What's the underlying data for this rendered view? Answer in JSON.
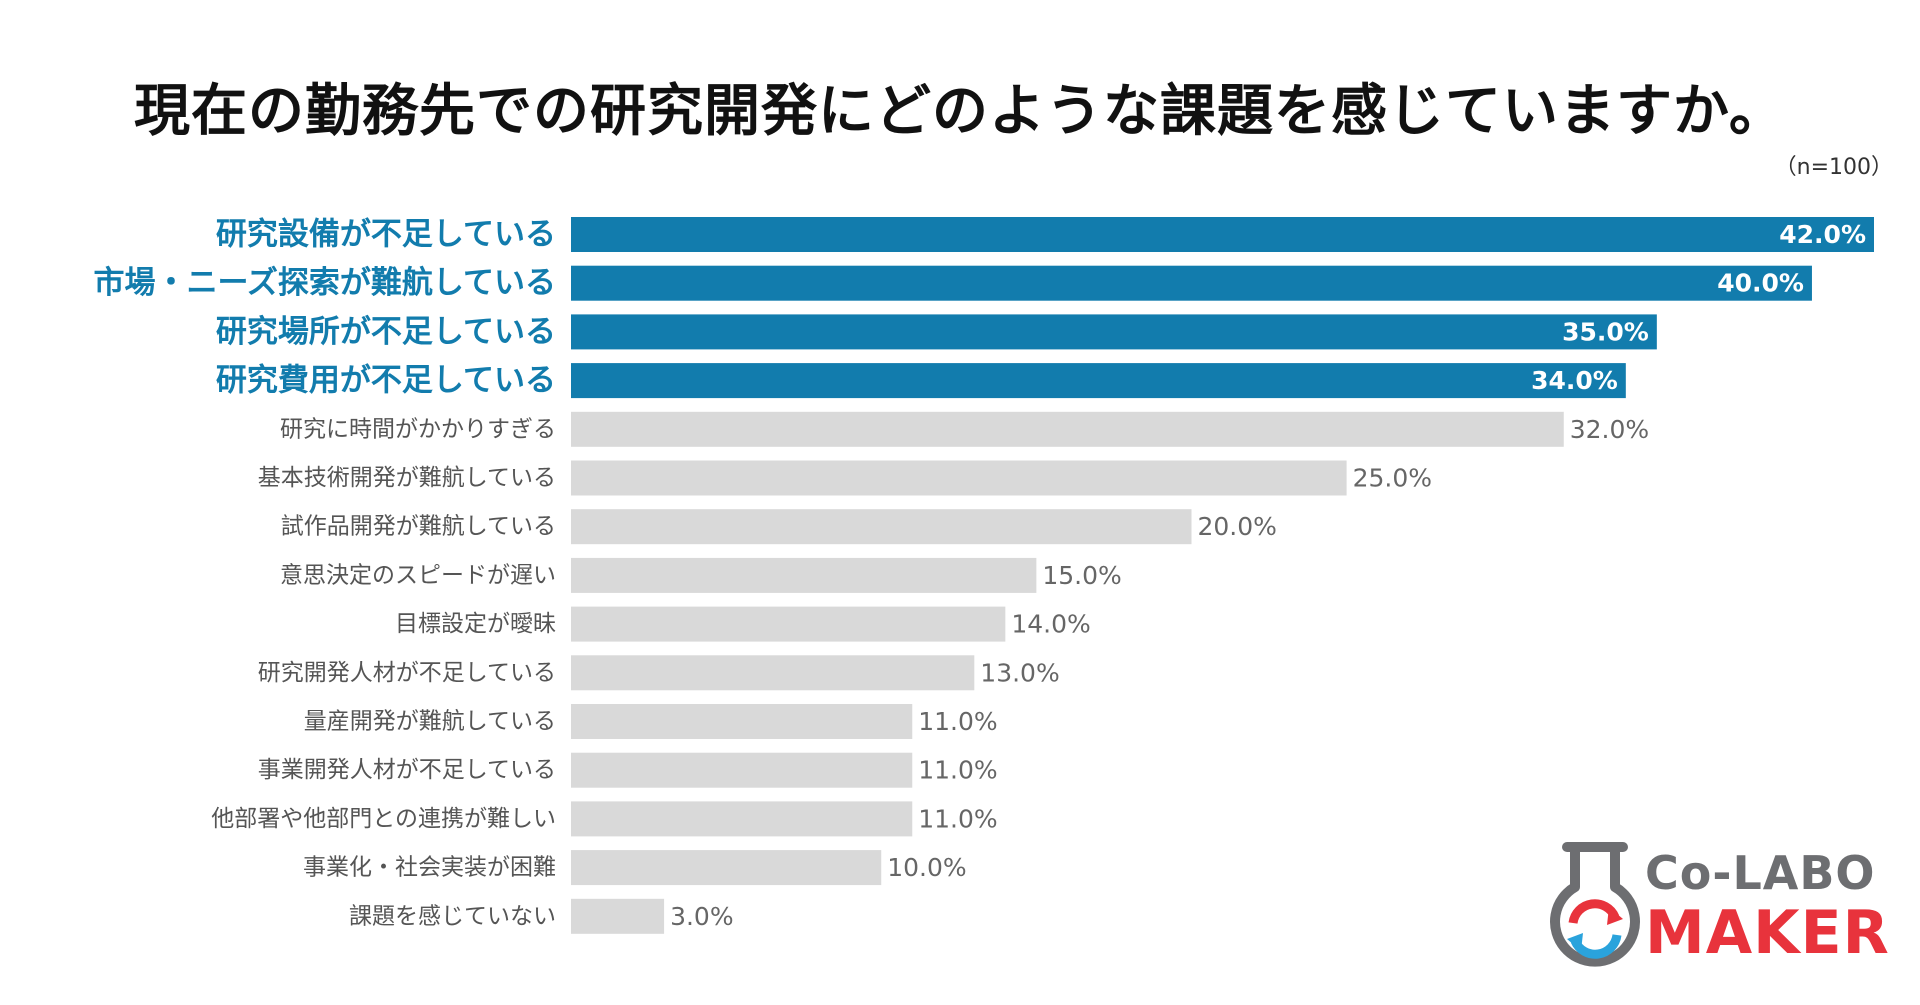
{
  "chart_data": {
    "type": "bar",
    "orientation": "horizontal",
    "title": "現在の勤務先での研究開発にどのような課題を感じていますか。",
    "sample_size": "（n=100）",
    "xlim": [
      0,
      42
    ],
    "grid": false,
    "highlight_count": 4,
    "colors": {
      "highlight_bar": "#127cad",
      "highlight_label": "#127cad",
      "normal_bar": "#d9d9d9",
      "normal_label": "#555555",
      "highlight_value_text": "#ffffff",
      "normal_value_text": "#666666"
    },
    "categories": [
      "研究設備が不足している",
      "市場・ニーズ探索が難航している",
      "研究場所が不足している",
      "研究費用が不足している",
      "研究に時間がかかりすぎる",
      "基本技術開発が難航している",
      "試作品開発が難航している",
      "意思決定のスピードが遅い",
      "目標設定が曖昧",
      "研究開発人材が不足している",
      "量産開発が難航している",
      "事業開発人材が不足している",
      "他部署や他部門との連携が難しい",
      "事業化・社会実装が困難",
      "課題を感じていない"
    ],
    "values": [
      42.0,
      40.0,
      35.0,
      34.0,
      32.0,
      25.0,
      20.0,
      15.0,
      14.0,
      13.0,
      11.0,
      11.0,
      11.0,
      10.0,
      3.0
    ],
    "value_labels": [
      "42.0%",
      "40.0%",
      "35.0%",
      "34.0%",
      "32.0%",
      "25.0%",
      "20.0%",
      "15.0%",
      "14.0%",
      "13.0%",
      "11.0%",
      "11.0%",
      "11.0%",
      "10.0%",
      "3.0%"
    ]
  },
  "logo": {
    "line1": "Co-LABO",
    "line2": "MAKER",
    "colors": {
      "gray": "#6d6e71",
      "red": "#e8333c",
      "blue": "#2aa3dc"
    }
  }
}
